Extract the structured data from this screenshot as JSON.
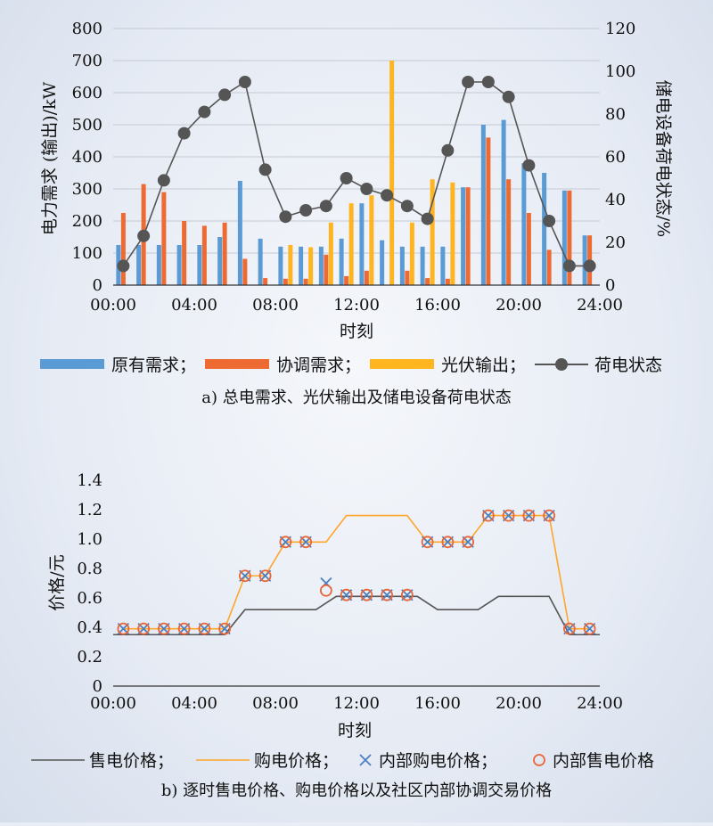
{
  "chart_data": [
    {
      "type": "bar",
      "caption": "a) 总电需求、光伏输出及储电设备荷电状态",
      "xlabel": "时刻",
      "ylabel": "电力需求 (输出)/kW",
      "ylabel_right": "储电设备荷电状态/%",
      "ylim": [
        0,
        800
      ],
      "yticks": [
        "0",
        "100",
        "200",
        "300",
        "400",
        "500",
        "600",
        "700",
        "800"
      ],
      "ylim_right": [
        0,
        120
      ],
      "yticks_right": [
        "0",
        "20",
        "40",
        "60",
        "80",
        "100",
        "120"
      ],
      "xlim": [
        0,
        24
      ],
      "xticks": [
        "00:00",
        "04:00",
        "08:00",
        "12:00",
        "16:00",
        "20:00",
        "24:00"
      ],
      "x": [
        0.5,
        1.5,
        2.5,
        3.5,
        4.5,
        5.5,
        6.5,
        7.5,
        8.5,
        9.5,
        10.5,
        11.5,
        12.5,
        13.5,
        14.5,
        15.5,
        16.5,
        17.5,
        18.5,
        19.5,
        20.5,
        21.5,
        22.5,
        23.5
      ],
      "legend": [
        "原有需求；",
        "协调需求；",
        "光伏输出；",
        "荷电状态"
      ],
      "series": [
        {
          "name": "原有需求",
          "kind": "bar",
          "color": "#5b9bd5",
          "values": [
            125,
            125,
            125,
            125,
            125,
            150,
            325,
            145,
            120,
            120,
            120,
            145,
            255,
            140,
            120,
            120,
            120,
            305,
            500,
            515,
            380,
            350,
            295,
            155
          ]
        },
        {
          "name": "协调需求",
          "kind": "bar",
          "color": "#ed6b33",
          "values": [
            225,
            315,
            290,
            200,
            185,
            195,
            82,
            22,
            20,
            20,
            95,
            28,
            45,
            0,
            45,
            22,
            20,
            305,
            460,
            330,
            225,
            110,
            295,
            155
          ]
        },
        {
          "name": "光伏输出",
          "kind": "bar",
          "color": "#ffb520",
          "values": [
            0,
            0,
            0,
            0,
            0,
            0,
            0,
            0,
            125,
            118,
            195,
            255,
            280,
            700,
            195,
            330,
            320,
            0,
            0,
            0,
            0,
            0,
            0,
            0
          ]
        },
        {
          "name": "荷电状态",
          "kind": "line",
          "axis": "right",
          "color": "#555555",
          "x": [
            0.5,
            1.5,
            2.5,
            3.5,
            4.5,
            5.5,
            6.5,
            7.5,
            8.5,
            9.5,
            10.5,
            11.5,
            12.5,
            13.5,
            14.5,
            15.5,
            16.5,
            17.5,
            18.5,
            19.5,
            20.5,
            21.5,
            22.5,
            23.5
          ],
          "values": [
            9,
            23,
            49,
            71,
            81,
            89,
            95,
            54,
            32,
            35,
            37,
            50,
            45,
            42,
            37,
            31,
            63,
            95,
            95,
            88,
            56,
            30,
            9,
            9
          ]
        }
      ]
    },
    {
      "type": "line",
      "caption": "b) 逐时售电价格、购电价格以及社区内部协调交易价格",
      "xlabel": "时刻",
      "ylabel": "价格/元",
      "ylim": [
        0,
        1.4
      ],
      "yticks": [
        "0",
        "0.2",
        "0.4",
        "0.6",
        "0.8",
        "1.0",
        "1.2",
        "1.4"
      ],
      "xlim": [
        0,
        24
      ],
      "xticks": [
        "00:00",
        "04:00",
        "08:00",
        "12:00",
        "16:00",
        "20:00",
        "24:00"
      ],
      "legend": [
        "售电价格；",
        "购电价格；",
        "内部购电价格；",
        "内部售电价格"
      ],
      "series": [
        {
          "name": "售电价格",
          "kind": "line",
          "color": "#555555",
          "x": [
            0,
            5.5,
            6.5,
            10,
            11,
            15,
            16,
            18,
            19,
            21.5,
            22.5,
            24
          ],
          "values": [
            0.35,
            0.35,
            0.52,
            0.52,
            0.61,
            0.61,
            0.52,
            0.52,
            0.61,
            0.61,
            0.35,
            0.35
          ]
        },
        {
          "name": "购电价格",
          "kind": "line",
          "color": "#ffa62b",
          "x": [
            0.5,
            5.5,
            6.5,
            7.5,
            8.5,
            10.5,
            11.5,
            14.5,
            15.5,
            17.5,
            18.5,
            21.5,
            22.5,
            23.5
          ],
          "values": [
            0.39,
            0.39,
            0.75,
            0.75,
            0.98,
            0.98,
            1.16,
            1.16,
            0.98,
            0.98,
            1.16,
            1.16,
            0.39,
            0.39
          ]
        },
        {
          "name": "内部购电价格",
          "kind": "scatter",
          "marker": "x",
          "color": "#4a7fc1",
          "x": [
            0.5,
            1.5,
            2.5,
            3.5,
            4.5,
            5.5,
            6.5,
            7.5,
            8.5,
            9.5,
            10.5,
            11.5,
            12.5,
            13.5,
            14.5,
            15.5,
            16.5,
            17.5,
            18.5,
            19.5,
            20.5,
            21.5,
            22.5,
            23.5
          ],
          "values": [
            0.39,
            0.39,
            0.39,
            0.39,
            0.39,
            0.39,
            0.75,
            0.75,
            0.98,
            0.98,
            0.7,
            0.62,
            0.62,
            0.62,
            0.62,
            0.98,
            0.98,
            0.98,
            1.16,
            1.16,
            1.16,
            1.16,
            0.39,
            0.39
          ]
        },
        {
          "name": "内部售电价格",
          "kind": "scatter",
          "marker": "circle",
          "color": "#e8673a",
          "x": [
            0.5,
            1.5,
            2.5,
            3.5,
            4.5,
            5.5,
            6.5,
            7.5,
            8.5,
            9.5,
            10.5,
            11.5,
            12.5,
            13.5,
            14.5,
            15.5,
            16.5,
            17.5,
            18.5,
            19.5,
            20.5,
            21.5,
            22.5,
            23.5
          ],
          "values": [
            0.39,
            0.39,
            0.39,
            0.39,
            0.39,
            0.39,
            0.75,
            0.75,
            0.98,
            0.98,
            0.65,
            0.62,
            0.62,
            0.62,
            0.62,
            0.98,
            0.98,
            0.98,
            1.16,
            1.16,
            1.16,
            1.16,
            0.39,
            0.39
          ]
        }
      ]
    }
  ]
}
